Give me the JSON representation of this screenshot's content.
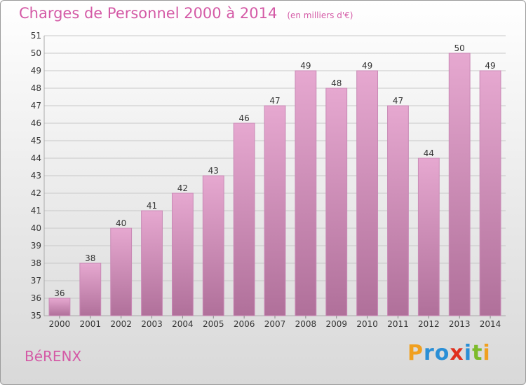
{
  "header": {
    "title": "Charges de Personnel 2000 à 2014",
    "subtitle": "(en milliers d'€)"
  },
  "footer": {
    "commune": "BéRENX"
  },
  "logo": {
    "text": "Proxiti",
    "letters": [
      {
        "char": "P",
        "color": "#f0a020"
      },
      {
        "char": "r",
        "color": "#2a8fd6"
      },
      {
        "char": "o",
        "color": "#2a8fd6"
      },
      {
        "char": "x",
        "color": "#e0301e"
      },
      {
        "char": "i",
        "color": "#2a8fd6"
      },
      {
        "char": "t",
        "color": "#7dbb2a"
      },
      {
        "char": "i",
        "color": "#f0a020"
      }
    ]
  },
  "colors": {
    "title": "#d45aa6",
    "bar_top": "#e6a8d0",
    "bar_bottom": "#b0709a",
    "bar_stroke": "#c98ab6",
    "grid": "#c8c8c8",
    "axis_text": "#333333"
  },
  "chart_data": {
    "type": "bar",
    "title": "Charges de Personnel 2000 à 2014",
    "subtitle": "(en milliers d'€)",
    "categories": [
      "2000",
      "2001",
      "2002",
      "2003",
      "2004",
      "2005",
      "2006",
      "2007",
      "2008",
      "2009",
      "2010",
      "2011",
      "2012",
      "2013",
      "2014"
    ],
    "values": [
      36,
      38,
      40,
      41,
      42,
      43,
      46,
      47,
      49,
      48,
      49,
      47,
      44,
      50,
      49
    ],
    "ylim": [
      35,
      51
    ],
    "yticks": [
      35,
      36,
      37,
      38,
      39,
      40,
      41,
      42,
      43,
      44,
      45,
      46,
      47,
      48,
      49,
      50,
      51
    ],
    "grid": true,
    "data_labels": true
  }
}
